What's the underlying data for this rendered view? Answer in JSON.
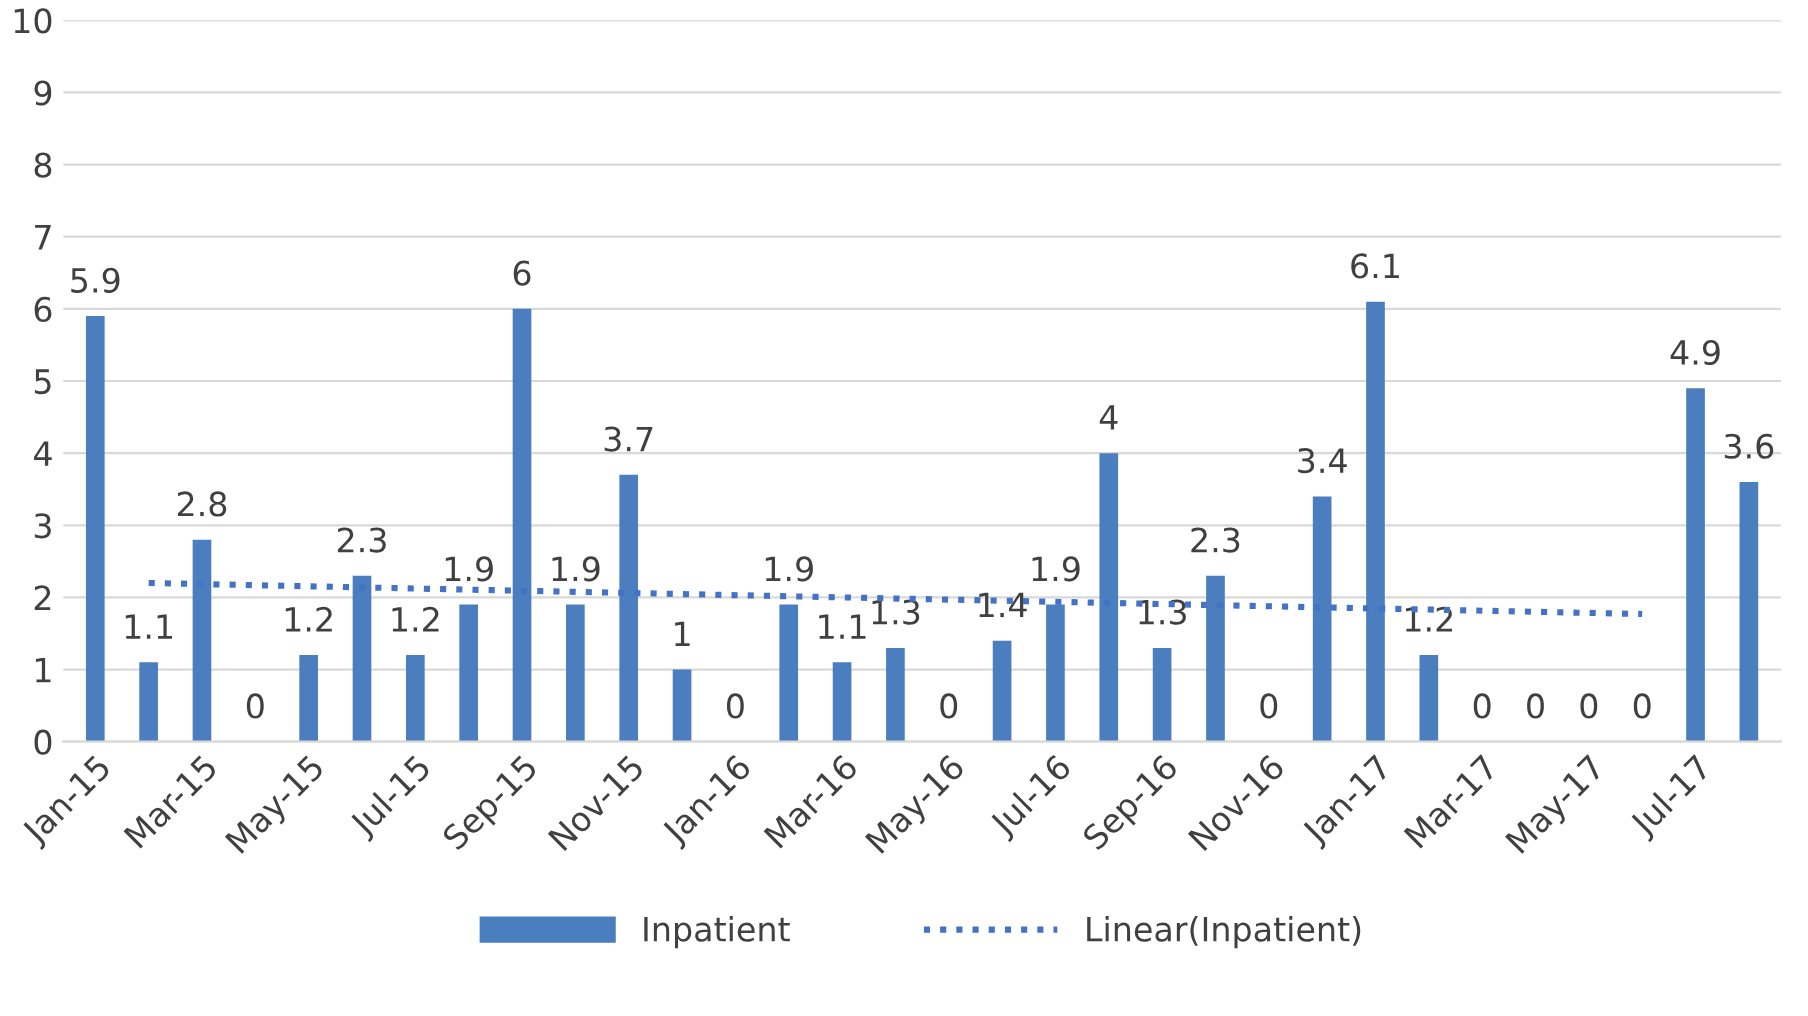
{
  "chart_data": {
    "type": "bar",
    "categories": [
      "Jan-15",
      null,
      "Mar-15",
      null,
      "May-15",
      null,
      "Jul-15",
      null,
      "Sep-15",
      null,
      "Nov-15",
      null,
      "Jan-16",
      null,
      "Mar-16",
      null,
      "May-16",
      null,
      "Jul-16",
      null,
      "Sep-16",
      null,
      "Nov-16",
      null,
      "Jan-17",
      null,
      "Mar-17",
      null,
      "May-17",
      null,
      "Jul-17",
      null
    ],
    "series": [
      {
        "name": "Inpatient",
        "color": "#4a7ebf",
        "values": [
          5.9,
          1.1,
          2.8,
          0,
          1.2,
          2.3,
          1.2,
          1.9,
          6,
          1.9,
          3.7,
          1,
          0,
          1.9,
          1.1,
          1.3,
          0,
          1.4,
          1.9,
          4,
          1.3,
          2.3,
          0,
          3.4,
          6.1,
          1.2,
          0,
          0,
          0,
          0,
          4.9,
          3.6
        ],
        "value_labels": [
          "5.9",
          "1.1",
          "2.8",
          "0",
          "1.2",
          "2.3",
          "1.2",
          "1.9",
          "6",
          "1.9",
          "3.7",
          "1",
          "0",
          "1.9",
          "1.1",
          "1.3",
          "0",
          "1.4",
          "1.9",
          "4",
          "1.3",
          "2.3",
          "0",
          "3.4",
          "6.1",
          "1.2",
          "0",
          "0",
          "0",
          "0",
          "4.9",
          "3.6"
        ]
      },
      {
        "name": "Linear(Inpatient)",
        "type": "line",
        "color": "#4472c4",
        "line_style": "dotted",
        "values": [
          null,
          2.2,
          null,
          null,
          null,
          null,
          null,
          null,
          null,
          null,
          null,
          null,
          null,
          null,
          null,
          null,
          null,
          null,
          null,
          null,
          null,
          null,
          null,
          null,
          null,
          null,
          null,
          null,
          null,
          1.77,
          null,
          null
        ]
      }
    ],
    "ylim": [
      0,
      10
    ],
    "yticks": [
      0,
      1,
      2,
      3,
      4,
      5,
      6,
      7,
      8,
      9,
      10
    ],
    "grid": "y",
    "legend": "bottom"
  }
}
